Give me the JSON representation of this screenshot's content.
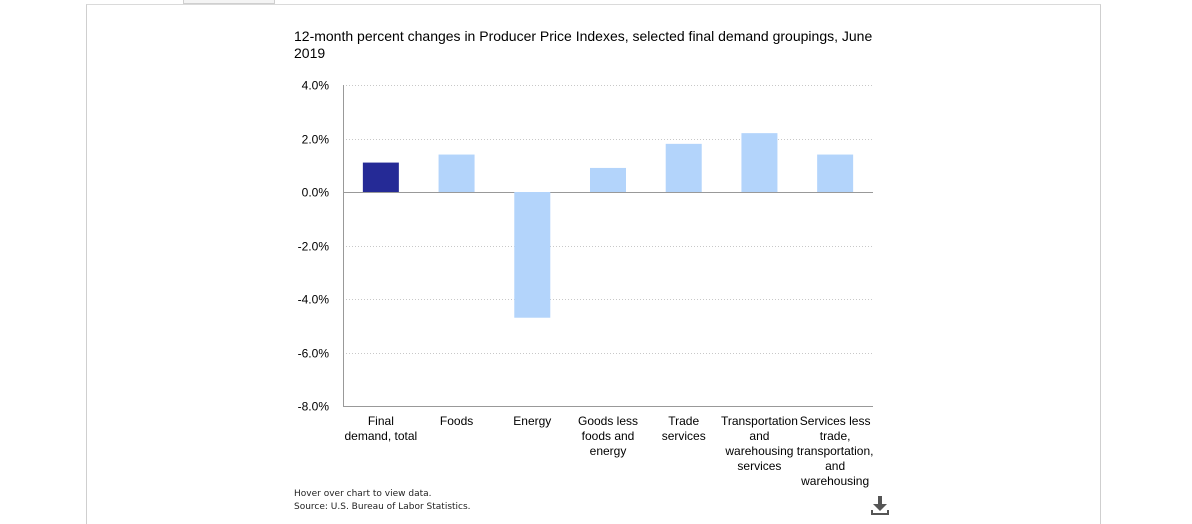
{
  "chart_data": {
    "type": "bar",
    "title": "12-month percent changes in Producer Price Indexes, selected final demand groupings, June 2019",
    "xlabel": "",
    "ylabel": "",
    "ylim": [
      -8.0,
      4.0
    ],
    "yticks": [
      "4.0%",
      "2.0%",
      "0.0%",
      "-2.0%",
      "-4.0%",
      "-6.0%",
      "-8.0%"
    ],
    "ytick_values": [
      4.0,
      2.0,
      0.0,
      -2.0,
      -4.0,
      -6.0,
      -8.0
    ],
    "grid": true,
    "categories": [
      [
        "Final",
        "demand, total"
      ],
      [
        "Foods"
      ],
      [
        "Energy"
      ],
      [
        "Goods less",
        "foods and",
        "energy"
      ],
      [
        "Trade",
        "services"
      ],
      [
        "Transportation",
        "and",
        "warehousing",
        "services"
      ],
      [
        "Services less",
        "trade,",
        "transportation,",
        "and",
        "warehousing"
      ]
    ],
    "values": [
      1.1,
      1.4,
      -4.7,
      0.9,
      1.8,
      2.2,
      1.4
    ],
    "colors": [
      "#252a96",
      "#b3d4fb",
      "#b3d4fb",
      "#b3d4fb",
      "#b3d4fb",
      "#b3d4fb",
      "#b3d4fb"
    ]
  },
  "notes": {
    "hover": "Hover over chart to view data.",
    "source": "Source: U.S. Bureau of Labor Statistics."
  },
  "icons": {
    "download": "download-icon"
  }
}
